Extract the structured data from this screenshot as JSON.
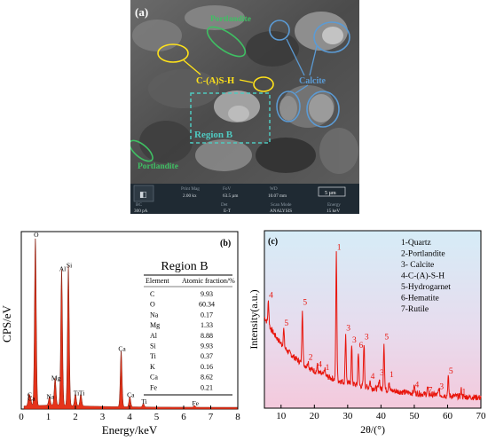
{
  "panel_a": {
    "label": "(a)",
    "annotations": {
      "portlandite_top": "Portlandite",
      "csh": "C-(A)S-H",
      "calcite": "Calcite",
      "region_b": "Region B",
      "portlandite_bottom": "Portlandite"
    },
    "info_bar": {
      "row1": [
        "Print Mag",
        "FoV",
        "WD"
      ],
      "row1_values": [
        "2.00 kx",
        "63.5 µm",
        "10.07 mm"
      ],
      "scale_bar": "5 µm",
      "row2": [
        "BC",
        "Det",
        "Scan Mode",
        "Energy"
      ],
      "row2_values": [
        "300 pA",
        "E-T",
        "ANALYSIS",
        "15 keV"
      ]
    },
    "colors": {
      "green": "#3fbf63",
      "yellow": "#ffe21a",
      "blue": "#5b9bd5",
      "cyan": "#4fc9c0"
    }
  },
  "chart_data": [
    {
      "type": "line",
      "panel": "(b)",
      "xlabel": "Energy/keV",
      "ylabel": "CPS/eV",
      "xlim": [
        0,
        8
      ],
      "xticks": [
        0,
        1,
        2,
        3,
        4,
        5,
        6,
        7,
        8
      ],
      "fill_color": "#e6331a",
      "peaks": [
        {
          "label": "C",
          "x": 0.28,
          "y": 0.06
        },
        {
          "label": "Ca",
          "x": 0.34,
          "y": 0.04
        },
        {
          "label": "O",
          "x": 0.52,
          "y": 1.0
        },
        {
          "label": "Na",
          "x": 1.04,
          "y": 0.05
        },
        {
          "label": "Mg",
          "x": 1.25,
          "y": 0.16
        },
        {
          "label": "Al",
          "x": 1.49,
          "y": 0.8
        },
        {
          "label": "Si",
          "x": 1.74,
          "y": 0.82
        },
        {
          "label": "Ti",
          "x": 2.0,
          "y": 0.07
        },
        {
          "label": "Ti",
          "x": 2.2,
          "y": 0.07
        },
        {
          "label": "Ca",
          "x": 3.69,
          "y": 0.33
        },
        {
          "label": "Ca",
          "x": 4.01,
          "y": 0.06
        },
        {
          "label": "Ti",
          "x": 4.51,
          "y": 0.02
        },
        {
          "label": "Fe",
          "x": 6.4,
          "y": 0.01
        }
      ],
      "table": {
        "title": "Region B",
        "headers": [
          "Element",
          "Atomic fraction/%"
        ],
        "rows": [
          [
            "C",
            "9.93"
          ],
          [
            "O",
            "60.34"
          ],
          [
            "Na",
            "0.17"
          ],
          [
            "Mg",
            "1.33"
          ],
          [
            "Al",
            "8.88"
          ],
          [
            "Si",
            "9.93"
          ],
          [
            "Ti",
            "0.37"
          ],
          [
            "K",
            "0.16"
          ],
          [
            "Ca",
            "8.62"
          ],
          [
            "Fe",
            "0.21"
          ]
        ]
      }
    },
    {
      "type": "line",
      "panel": "(c)",
      "xlabel": "2θ/(°)",
      "ylabel": "Intensity(a.u.)",
      "xlim": [
        5,
        70
      ],
      "xticks": [
        10,
        20,
        30,
        40,
        50,
        60,
        70
      ],
      "line_color": "#e8150c",
      "legend": [
        "1-Quartz",
        "2-Portlandite",
        "3- Calcite",
        "4-C-(A)-S-H",
        "5-Hydrogarnet",
        "6-Hematite",
        "7-Rutile"
      ],
      "peaks": [
        {
          "label": "4",
          "x": 6.2,
          "y": 0.62
        },
        {
          "label": "5",
          "x": 10.8,
          "y": 0.46
        },
        {
          "label": "5",
          "x": 16.4,
          "y": 0.58
        },
        {
          "label": "2",
          "x": 18.1,
          "y": 0.26
        },
        {
          "label": "4",
          "x": 20.9,
          "y": 0.22
        },
        {
          "label": "1",
          "x": 23.1,
          "y": 0.2
        },
        {
          "label": "1",
          "x": 26.6,
          "y": 0.9
        },
        {
          "label": "3",
          "x": 29.4,
          "y": 0.43
        },
        {
          "label": "3",
          "x": 31.2,
          "y": 0.36
        },
        {
          "label": "6",
          "x": 33.2,
          "y": 0.33
        },
        {
          "label": "3",
          "x": 34.9,
          "y": 0.38
        },
        {
          "label": "4",
          "x": 36.7,
          "y": 0.15
        },
        {
          "label": "3",
          "x": 39.5,
          "y": 0.17
        },
        {
          "label": "5",
          "x": 40.9,
          "y": 0.38
        },
        {
          "label": "1",
          "x": 42.4,
          "y": 0.16
        },
        {
          "label": "4",
          "x": 50.0,
          "y": 0.1
        },
        {
          "label": "7",
          "x": 54.0,
          "y": 0.07
        },
        {
          "label": "3",
          "x": 57.4,
          "y": 0.09
        },
        {
          "label": "5",
          "x": 60.2,
          "y": 0.18
        },
        {
          "label": "1",
          "x": 64.1,
          "y": 0.06
        }
      ]
    }
  ]
}
